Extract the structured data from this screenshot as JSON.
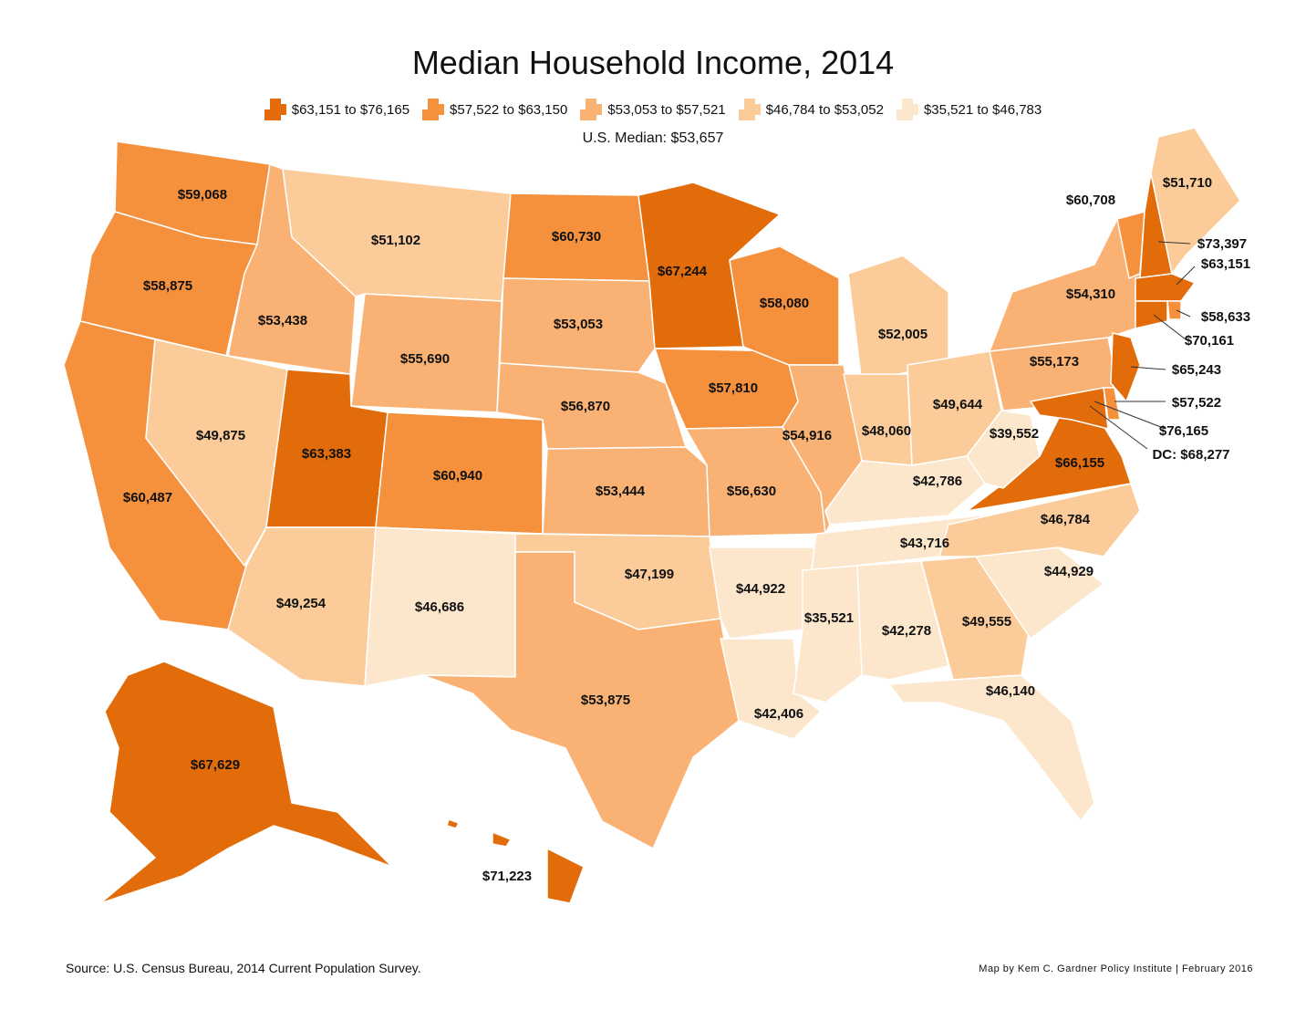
{
  "title": "Median Household Income, 2014",
  "legend": [
    {
      "label": "$63,151 to $76,165",
      "color": "#e36c0a"
    },
    {
      "label": "$57,522 to $63,150",
      "color": "#f5913d"
    },
    {
      "label": "$53,053 to $57,521",
      "color": "#f9b273"
    },
    {
      "label": "$46,784 to $53,052",
      "color": "#fbcc99"
    },
    {
      "label": "$35,521 to $46,783",
      "color": "#fde7cc"
    }
  ],
  "us_median": "U.S. Median: $53,657",
  "source": "Source: U.S. Census Bureau, 2014 Current Population Survey.",
  "credit": "Map by Kem C. Gardner Policy Institute | February 2016",
  "states": [
    {
      "id": "WA",
      "value": "$59,068",
      "tier": 1
    },
    {
      "id": "OR",
      "value": "$58,875",
      "tier": 1
    },
    {
      "id": "CA",
      "value": "$60,487",
      "tier": 1
    },
    {
      "id": "ID",
      "value": "$53,438",
      "tier": 2
    },
    {
      "id": "NV",
      "value": "$49,875",
      "tier": 3
    },
    {
      "id": "MT",
      "value": "$51,102",
      "tier": 3
    },
    {
      "id": "WY",
      "value": "$55,690",
      "tier": 2
    },
    {
      "id": "UT",
      "value": "$63,383",
      "tier": 0
    },
    {
      "id": "AZ",
      "value": "$49,254",
      "tier": 3
    },
    {
      "id": "CO",
      "value": "$60,940",
      "tier": 1
    },
    {
      "id": "NM",
      "value": "$46,686",
      "tier": 4
    },
    {
      "id": "ND",
      "value": "$60,730",
      "tier": 1
    },
    {
      "id": "SD",
      "value": "$53,053",
      "tier": 2
    },
    {
      "id": "NE",
      "value": "$56,870",
      "tier": 2
    },
    {
      "id": "KS",
      "value": "$53,444",
      "tier": 2
    },
    {
      "id": "OK",
      "value": "$47,199",
      "tier": 3
    },
    {
      "id": "TX",
      "value": "$53,875",
      "tier": 2
    },
    {
      "id": "MN",
      "value": "$67,244",
      "tier": 0
    },
    {
      "id": "IA",
      "value": "$57,810",
      "tier": 1
    },
    {
      "id": "MO",
      "value": "$56,630",
      "tier": 2
    },
    {
      "id": "AR",
      "value": "$44,922",
      "tier": 4
    },
    {
      "id": "LA",
      "value": "$42,406",
      "tier": 4
    },
    {
      "id": "WI",
      "value": "$58,080",
      "tier": 1
    },
    {
      "id": "IL",
      "value": "$54,916",
      "tier": 2
    },
    {
      "id": "MI",
      "value": "$52,005",
      "tier": 3
    },
    {
      "id": "IN",
      "value": "$48,060",
      "tier": 3
    },
    {
      "id": "OH",
      "value": "$49,644",
      "tier": 3
    },
    {
      "id": "KY",
      "value": "$42,786",
      "tier": 4
    },
    {
      "id": "TN",
      "value": "$43,716",
      "tier": 4
    },
    {
      "id": "MS",
      "value": "$35,521",
      "tier": 4
    },
    {
      "id": "AL",
      "value": "$42,278",
      "tier": 4
    },
    {
      "id": "GA",
      "value": "$49,555",
      "tier": 3
    },
    {
      "id": "FL",
      "value": "$46,140",
      "tier": 4
    },
    {
      "id": "SC",
      "value": "$44,929",
      "tier": 4
    },
    {
      "id": "NC",
      "value": "$46,784",
      "tier": 3
    },
    {
      "id": "VA",
      "value": "$66,155",
      "tier": 0
    },
    {
      "id": "WV",
      "value": "$39,552",
      "tier": 4
    },
    {
      "id": "PA",
      "value": "$55,173",
      "tier": 2
    },
    {
      "id": "NY",
      "value": "$54,310",
      "tier": 2
    },
    {
      "id": "VT",
      "value": "$60,708",
      "tier": 1
    },
    {
      "id": "NH",
      "value": "$73,397",
      "tier": 0
    },
    {
      "id": "ME",
      "value": "$51,710",
      "tier": 3
    },
    {
      "id": "MA",
      "value": "$63,151",
      "tier": 0
    },
    {
      "id": "RI",
      "value": "$58,633",
      "tier": 1
    },
    {
      "id": "CT",
      "value": "$70,161",
      "tier": 0
    },
    {
      "id": "NJ",
      "value": "$65,243",
      "tier": 0
    },
    {
      "id": "DE",
      "value": "$57,522",
      "tier": 1
    },
    {
      "id": "MD",
      "value": "$76,165",
      "tier": 0
    },
    {
      "id": "DC",
      "value": "DC: $68,277",
      "tier": 0
    },
    {
      "id": "AK",
      "value": "$67,629",
      "tier": 0
    },
    {
      "id": "HI",
      "value": "$71,223",
      "tier": 0
    }
  ]
}
